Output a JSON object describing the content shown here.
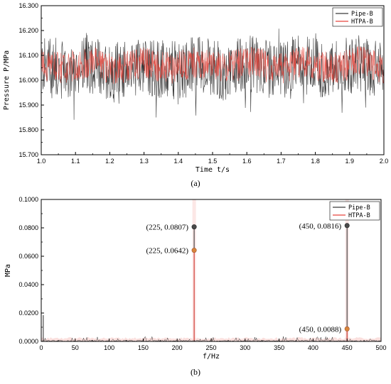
{
  "chart_data": [
    {
      "type": "line",
      "panel_label": "(a)",
      "xlabel": "Time t/s",
      "ylabel": "Pressure P/MPa",
      "xlim": [
        1.0,
        2.0
      ],
      "ylim": [
        15.7,
        16.3
      ],
      "x_ticks": [
        "1.0",
        "1.1",
        "1.2",
        "1.3",
        "1.4",
        "1.5",
        "1.6",
        "1.7",
        "1.8",
        "1.9",
        "2.0"
      ],
      "y_ticks": [
        "15.700",
        "15.800",
        "15.900",
        "16.000",
        "16.100",
        "16.200",
        "16.300"
      ],
      "legend": "top-right",
      "series": [
        {
          "name": "Pipe-B",
          "color": "#3a3a3a",
          "mean": 16.05,
          "min": 15.78,
          "max": 16.22
        },
        {
          "name": "HTPA-B",
          "color": "#e8453c",
          "mean": 16.06,
          "min": 15.97,
          "max": 16.15
        }
      ]
    },
    {
      "type": "line",
      "panel_label": "(b)",
      "xlabel": "f/Hz",
      "ylabel": "MPa",
      "xlim": [
        0,
        500
      ],
      "ylim": [
        0,
        0.1
      ],
      "x_ticks": [
        "0",
        "50",
        "100",
        "150",
        "200",
        "250",
        "300",
        "350",
        "400",
        "450",
        "500"
      ],
      "y_ticks": [
        "0.0000",
        "0.0200",
        "0.0400",
        "0.0600",
        "0.0800",
        "0.1000"
      ],
      "legend": "top-right",
      "series": [
        {
          "name": "Pipe-B",
          "color": "#3a3a3a",
          "peaks": [
            {
              "x": 3,
              "y": 0.0185
            },
            {
              "x": 225,
              "y": 0.0807
            },
            {
              "x": 450,
              "y": 0.0816
            }
          ]
        },
        {
          "name": "HTPA-B",
          "color": "#e8453c",
          "peaks": [
            {
              "x": 225,
              "y": 0.0642
            },
            {
              "x": 450,
              "y": 0.0088
            }
          ]
        }
      ],
      "annotations": [
        {
          "label": "(225, 0.0807)",
          "x": 225,
          "y": 0.0807,
          "series": "Pipe-B"
        },
        {
          "label": "(225, 0.0642)",
          "x": 225,
          "y": 0.0642,
          "series": "HTPA-B"
        },
        {
          "label": "(450, 0.0816)",
          "x": 450,
          "y": 0.0816,
          "series": "Pipe-B"
        },
        {
          "label": "(450, 0.0088)",
          "x": 450,
          "y": 0.0088,
          "series": "HTPA-B"
        }
      ]
    }
  ]
}
